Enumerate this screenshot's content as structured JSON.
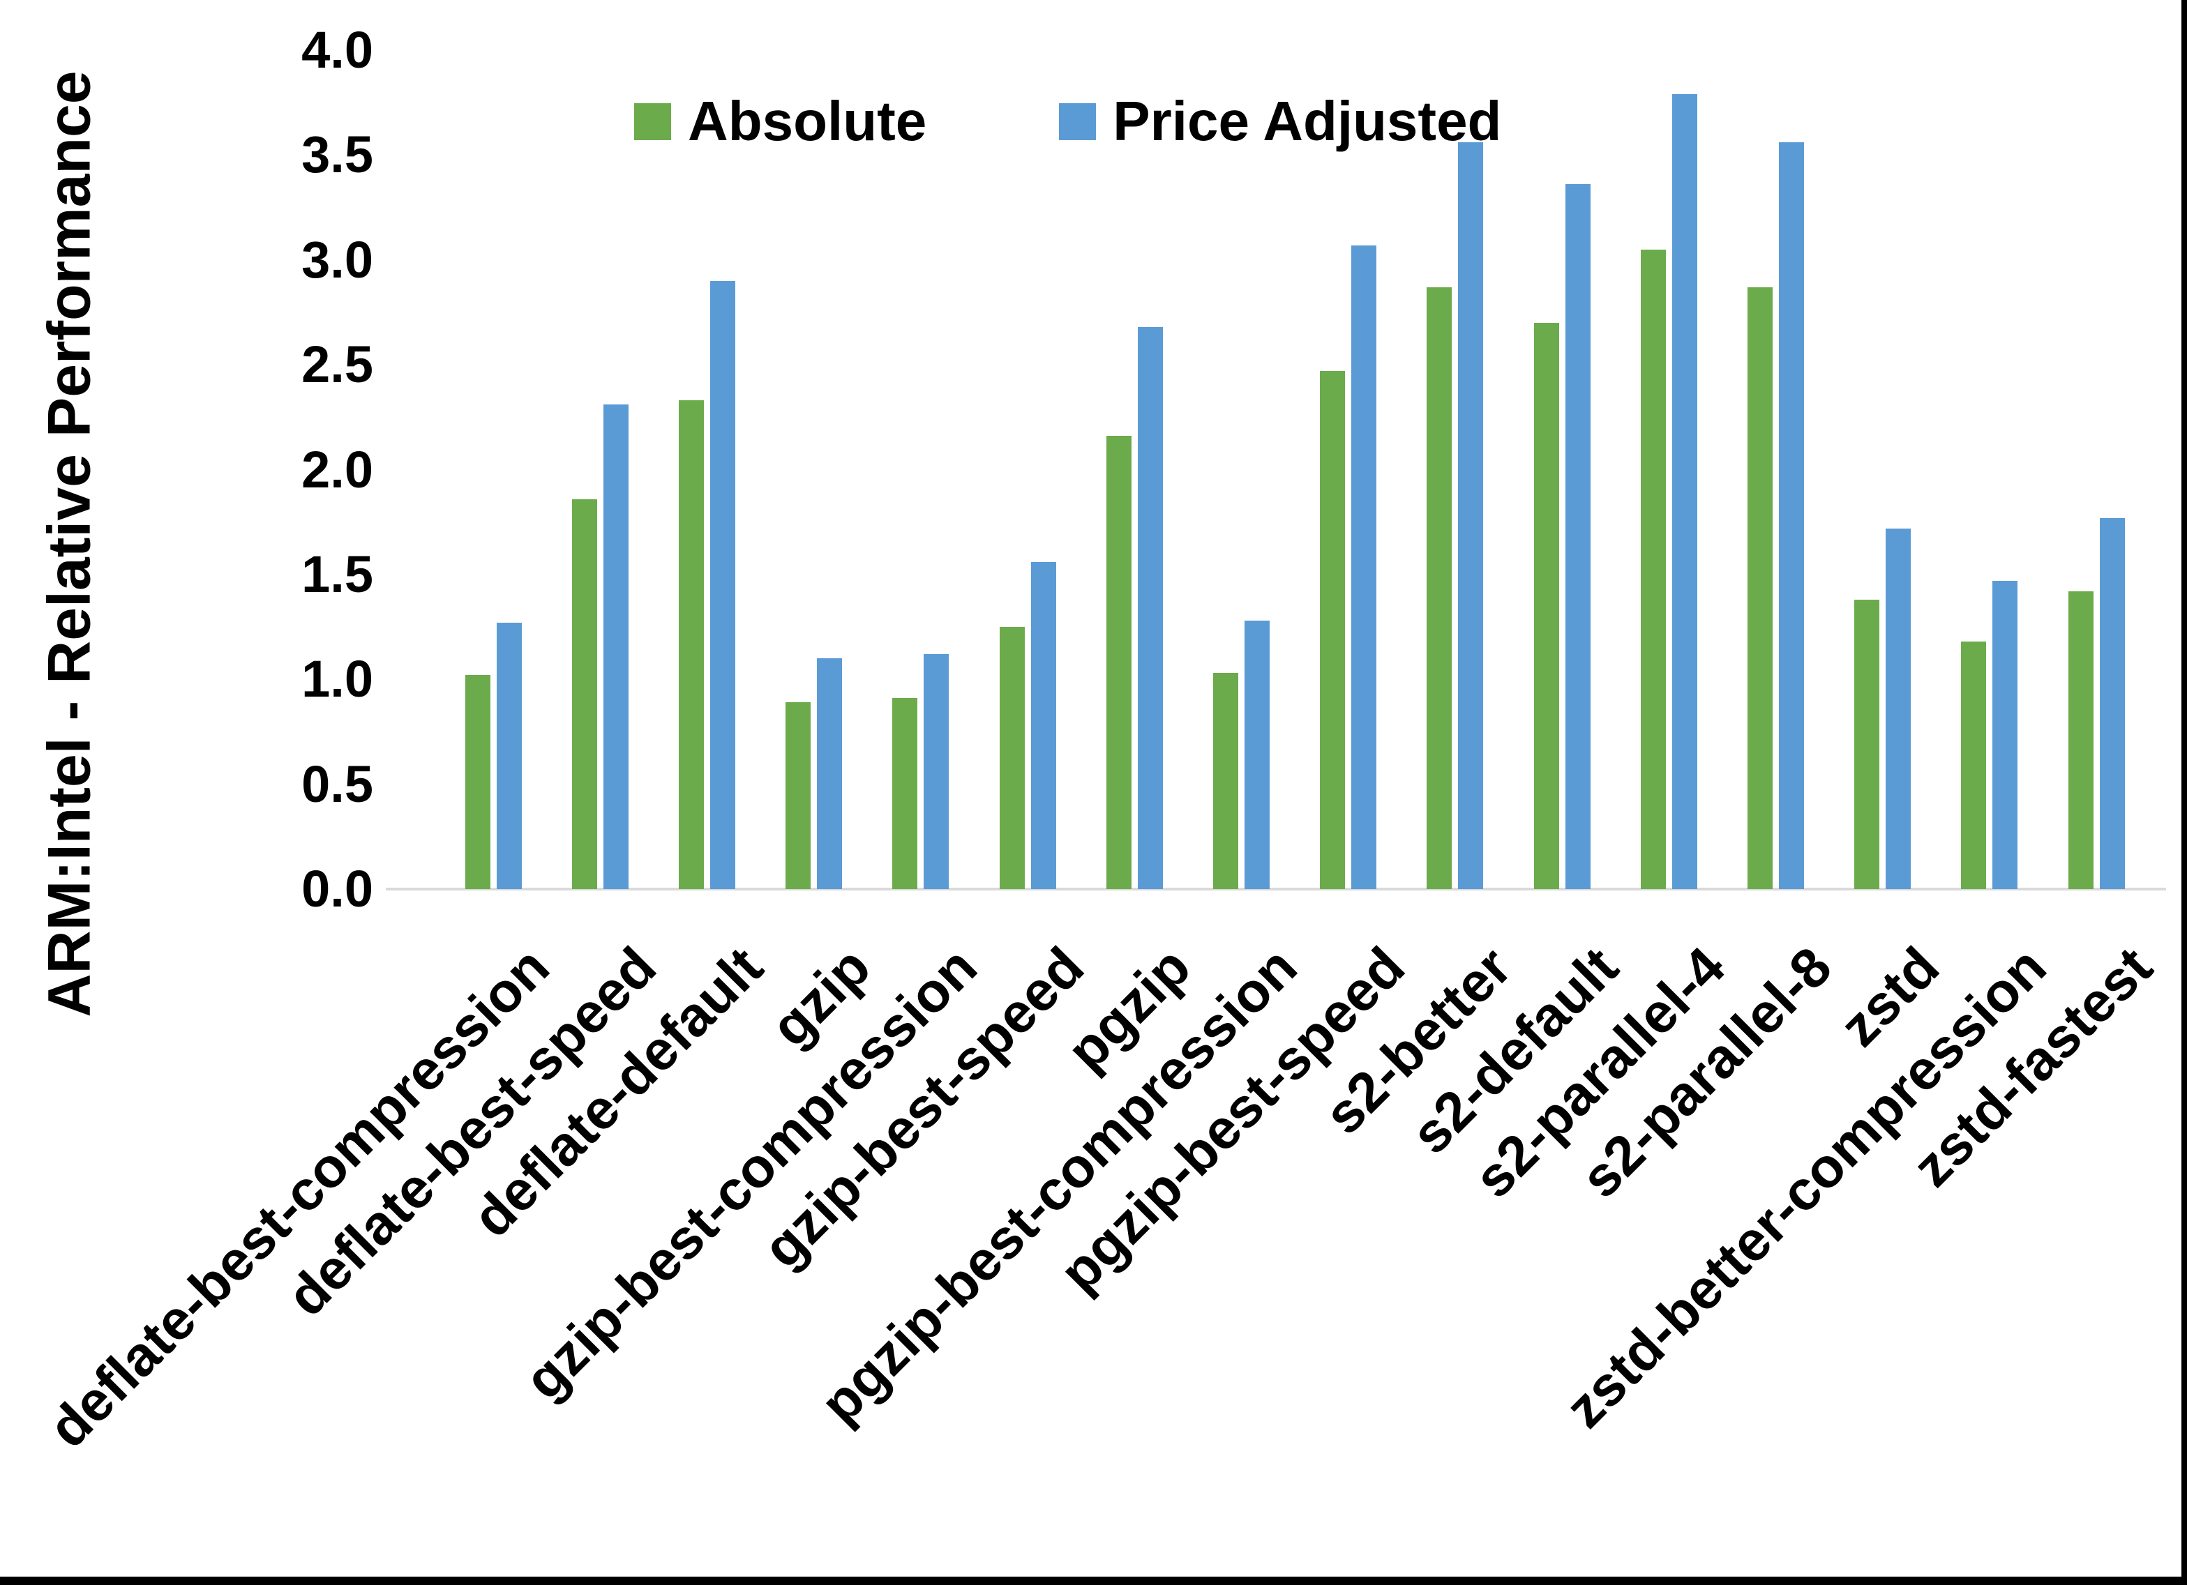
{
  "chart_data": {
    "type": "bar",
    "title": "",
    "xlabel": "",
    "ylabel": "ARM:Intel - Relative Performance",
    "ylim": [
      0.0,
      4.0
    ],
    "ytick_interval": 0.5,
    "ytick_labels": [
      "0.0",
      "0.5",
      "1.0",
      "1.5",
      "2.0",
      "2.5",
      "3.0",
      "3.5",
      "4.0"
    ],
    "grid": false,
    "legend_position": "top-center",
    "categories": [
      "deflate-best-compression",
      "deflate-best-speed",
      "deflate-default",
      "gzip",
      "gzip-best-compression",
      "gzip-best-speed",
      "pgzip",
      "pgzip-best-compression",
      "pgzip-best-speed",
      "s2-better",
      "s2-default",
      "s2-parallel-4",
      "s2-parallel-8",
      "zstd",
      "zstd-better-compression",
      "zstd-fastest"
    ],
    "series": [
      {
        "name": "Absolute",
        "color": "#6CAB4B",
        "values": [
          1.02,
          1.86,
          2.33,
          0.89,
          0.91,
          1.25,
          2.16,
          1.03,
          2.47,
          2.87,
          2.7,
          3.05,
          2.87,
          1.38,
          1.18,
          1.42
        ]
      },
      {
        "name": "Price Adjusted",
        "color": "#5B9BD5",
        "values": [
          1.27,
          2.31,
          2.9,
          1.1,
          1.12,
          1.56,
          2.68,
          1.28,
          3.07,
          3.56,
          3.36,
          3.79,
          3.56,
          1.72,
          1.47,
          1.77
        ]
      }
    ],
    "axis_line_color": "#D9D9D9",
    "text_color": "#000000",
    "background_color": "#FFFFFF"
  },
  "frame": {
    "right_border_color": "#000000",
    "bottom_border_color": "#000000"
  }
}
